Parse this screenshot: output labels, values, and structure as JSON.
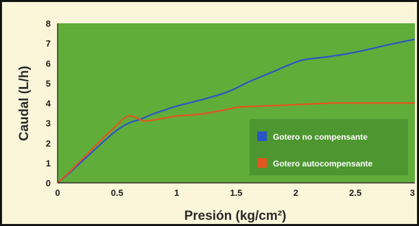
{
  "chart_data": {
    "type": "line",
    "title": "",
    "xlabel": "Presión (kg/cm²)",
    "ylabel": "Caudal (L/h)",
    "xlim": [
      0,
      3
    ],
    "ylim": [
      0,
      8
    ],
    "x_ticks": [
      "0",
      "0.5",
      "1",
      "1.5",
      "2",
      "2.5",
      "3"
    ],
    "y_ticks": [
      "0",
      "1",
      "2",
      "3",
      "4",
      "5",
      "6",
      "7",
      "8"
    ],
    "grid": false,
    "plot_background": "#61ad3a",
    "legend_position": "bottom-right",
    "series": [
      {
        "name": "Gotero no compensante",
        "color": "#2a55c8",
        "points": [
          [
            0,
            0
          ],
          [
            0.1,
            0.5
          ],
          [
            0.2,
            1.05
          ],
          [
            0.3,
            1.6
          ],
          [
            0.4,
            2.15
          ],
          [
            0.5,
            2.65
          ],
          [
            0.6,
            3.0
          ],
          [
            0.7,
            3.2
          ],
          [
            0.8,
            3.45
          ],
          [
            0.9,
            3.65
          ],
          [
            1.0,
            3.85
          ],
          [
            1.2,
            4.15
          ],
          [
            1.4,
            4.5
          ],
          [
            1.5,
            4.75
          ],
          [
            1.6,
            5.05
          ],
          [
            1.8,
            5.55
          ],
          [
            2.0,
            6.05
          ],
          [
            2.1,
            6.2
          ],
          [
            2.3,
            6.35
          ],
          [
            2.5,
            6.55
          ],
          [
            2.8,
            6.95
          ],
          [
            3.0,
            7.2
          ]
        ]
      },
      {
        "name": "Gotero autocompensante",
        "color": "#e4541e",
        "points": [
          [
            0,
            0
          ],
          [
            0.1,
            0.55
          ],
          [
            0.2,
            1.15
          ],
          [
            0.3,
            1.75
          ],
          [
            0.4,
            2.35
          ],
          [
            0.5,
            2.9
          ],
          [
            0.55,
            3.2
          ],
          [
            0.6,
            3.35
          ],
          [
            0.65,
            3.3
          ],
          [
            0.7,
            3.15
          ],
          [
            0.75,
            3.1
          ],
          [
            0.8,
            3.15
          ],
          [
            0.9,
            3.25
          ],
          [
            1.0,
            3.35
          ],
          [
            1.2,
            3.45
          ],
          [
            1.4,
            3.65
          ],
          [
            1.5,
            3.78
          ],
          [
            1.6,
            3.82
          ],
          [
            1.8,
            3.87
          ],
          [
            2.0,
            3.92
          ],
          [
            2.3,
            4.0
          ],
          [
            2.5,
            4.0
          ],
          [
            3.0,
            4.0
          ]
        ]
      }
    ]
  }
}
